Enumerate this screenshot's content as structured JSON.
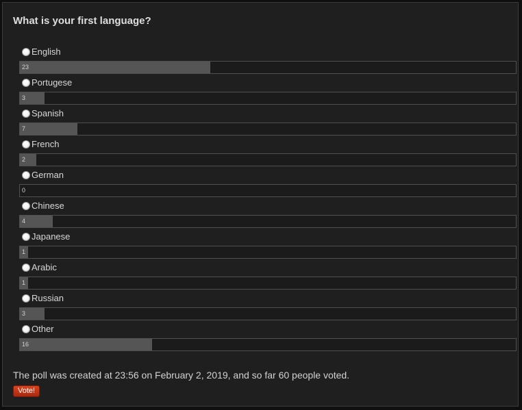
{
  "poll": {
    "question": "What is your first language?",
    "options": [
      {
        "label": "English",
        "votes": 23
      },
      {
        "label": "Portugese",
        "votes": 3
      },
      {
        "label": "Spanish",
        "votes": 7
      },
      {
        "label": "French",
        "votes": 2
      },
      {
        "label": "German",
        "votes": 0
      },
      {
        "label": "Chinese",
        "votes": 4
      },
      {
        "label": "Japanese",
        "votes": 1
      },
      {
        "label": "Arabic",
        "votes": 1
      },
      {
        "label": "Russian",
        "votes": 3
      },
      {
        "label": "Other",
        "votes": 16
      }
    ],
    "summary": "The poll was created at 23:56 on February 2, 2019, and so far 60 people voted.",
    "vote_button": "Vote!"
  },
  "colors": {
    "background": "#1f1f1f",
    "bar_fill": "#555555",
    "button": "#c23a1a"
  }
}
